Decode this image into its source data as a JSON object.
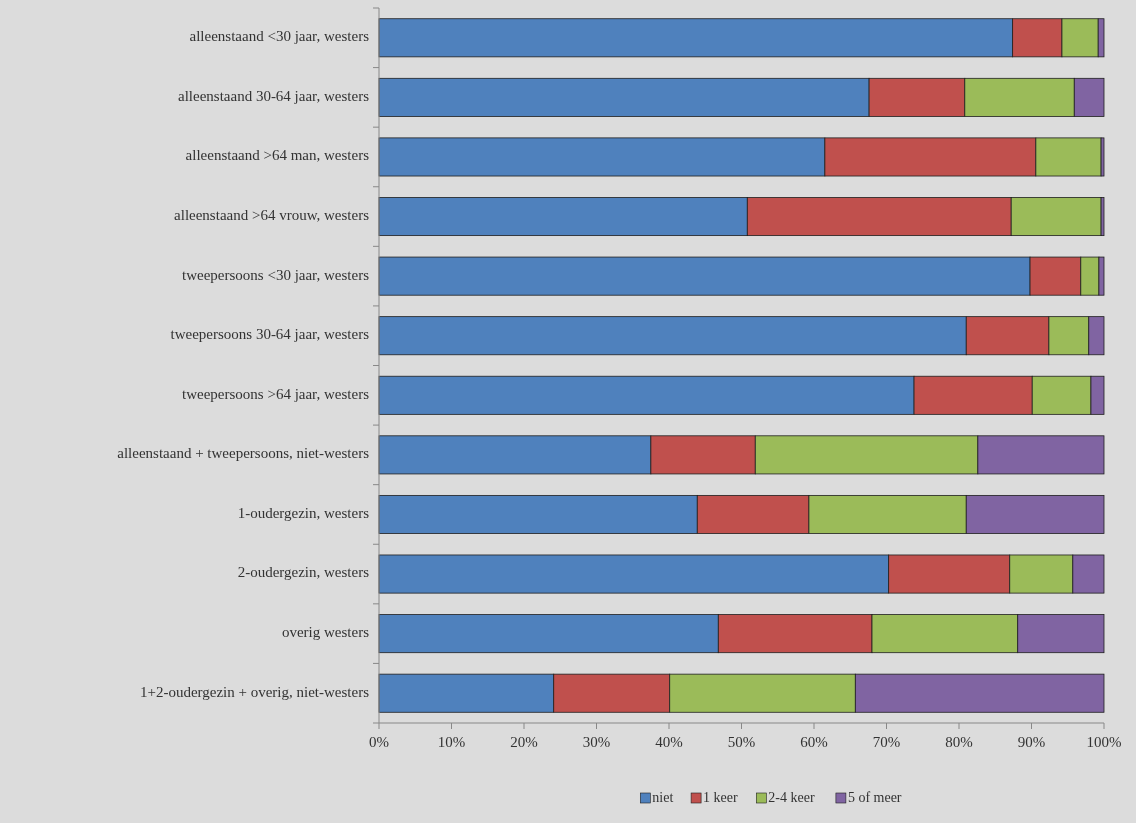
{
  "chart_data": {
    "type": "bar",
    "orientation": "horizontal",
    "stacked": true,
    "categories": [
      "alleenstaand <30 jaar, westers",
      "alleenstaand 30-64  jaar, westers",
      "alleenstaand >64 man, westers",
      "alleenstaand >64 vrouw, westers",
      "tweepersoons <30 jaar, westers",
      "tweepersoons 30-64 jaar, westers",
      "tweepersoons >64 jaar, westers",
      "alleenstaand + tweepersoons, niet-westers",
      "1-oudergezin, westers",
      "2-oudergezin, westers",
      "overig westers",
      "1+2-oudergezin + overig, niet-westers"
    ],
    "series": [
      {
        "name": "niet",
        "color": "#4f81bd",
        "values": [
          87.4,
          67.6,
          61.5,
          50.8,
          89.8,
          81.0,
          73.8,
          37.5,
          43.9,
          70.3,
          46.8,
          24.1
        ]
      },
      {
        "name": "1 keer",
        "color": "#c0504d",
        "values": [
          6.8,
          13.2,
          29.1,
          36.4,
          7.0,
          11.4,
          16.3,
          14.4,
          15.4,
          16.7,
          21.2,
          16.0
        ]
      },
      {
        "name": "2-4 keer",
        "color": "#9bbb59",
        "values": [
          5.0,
          15.1,
          9.0,
          12.4,
          2.5,
          5.5,
          8.1,
          30.7,
          21.7,
          8.7,
          20.1,
          25.6
        ]
      },
      {
        "name": "5 of meer",
        "color": "#8064a2",
        "values": [
          0.8,
          4.1,
          0.4,
          0.4,
          0.7,
          2.1,
          1.8,
          17.4,
          19.0,
          4.3,
          11.9,
          34.3
        ]
      }
    ],
    "xlim": [
      0,
      100
    ],
    "xticks": [
      {
        "value": 0,
        "label": "0%"
      },
      {
        "value": 10,
        "label": "10%"
      },
      {
        "value": 20,
        "label": "20%"
      },
      {
        "value": 30,
        "label": "30%"
      },
      {
        "value": 40,
        "label": "40%"
      },
      {
        "value": 50,
        "label": "50%"
      },
      {
        "value": 60,
        "label": "60%"
      },
      {
        "value": 70,
        "label": "70%"
      },
      {
        "value": 80,
        "label": "80%"
      },
      {
        "value": 90,
        "label": "90%"
      },
      {
        "value": 100,
        "label": "100%"
      }
    ],
    "grid": false,
    "legend": "bottom"
  }
}
